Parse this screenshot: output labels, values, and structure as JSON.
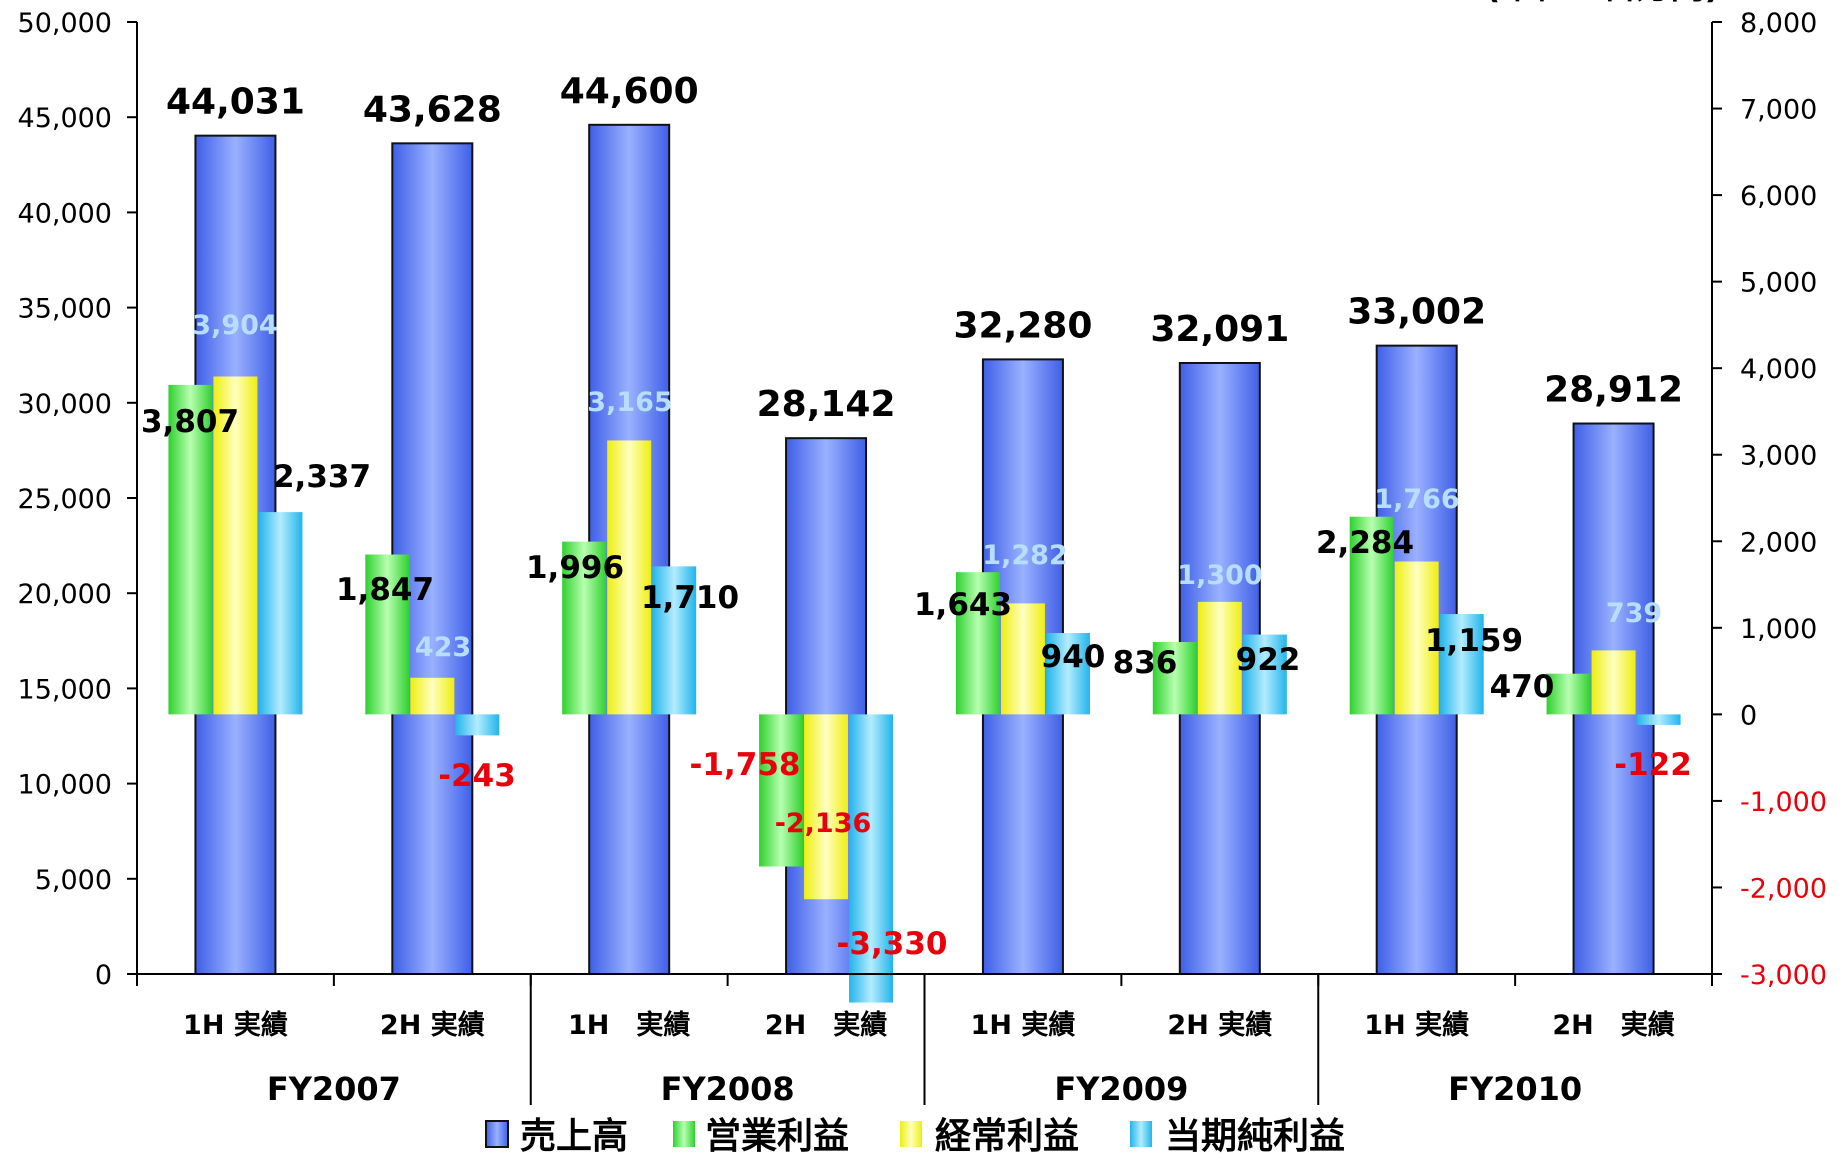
{
  "chart_data": {
    "type": "bar",
    "title": "",
    "unit_note": "(単位：百万円)",
    "left_axis": {
      "ylim": [
        0,
        50000
      ],
      "ticks": [
        "0",
        "5,000",
        "10,000",
        "15,000",
        "20,000",
        "25,000",
        "30,000",
        "35,000",
        "40,000",
        "45,000",
        "50,000"
      ]
    },
    "right_axis": {
      "ylim": [
        -3000,
        8000
      ],
      "ticks": [
        "-3,000",
        "-2,000",
        "-1,000",
        "0",
        "1,000",
        "2,000",
        "3,000",
        "4,000",
        "5,000",
        "6,000",
        "7,000",
        "8,000"
      ],
      "negative_color": "#e8000b",
      "positive_color": "#000000"
    },
    "categories": [
      "1H 実績",
      "2H 実績",
      "1H　実績",
      "2H　実績",
      "1H 実績",
      "2H 実績",
      "1H 実績",
      "2H　実績"
    ],
    "groups": [
      "FY2007",
      "FY2008",
      "FY2009",
      "FY2010"
    ],
    "series": [
      {
        "name": "売上高",
        "axis": "left",
        "color": "#6f8ff5",
        "values": [
          44031,
          43628,
          44600,
          28142,
          32280,
          32091,
          33002,
          28912
        ],
        "labels": [
          "44,031",
          "43,628",
          "44,600",
          "28,142",
          "32,280",
          "32,091",
          "33,002",
          "28,912"
        ]
      },
      {
        "name": "営業利益",
        "axis": "right",
        "color": "#5de85d",
        "values": [
          3807,
          1847,
          1996,
          -1758,
          1643,
          836,
          2284,
          470
        ],
        "labels": [
          "3,807",
          "1,847",
          "1,996",
          "-1,758",
          "1,643",
          "836",
          "2,284",
          "470"
        ]
      },
      {
        "name": "経常利益",
        "axis": "right",
        "color": "#f7f73a",
        "values": [
          3904,
          423,
          3165,
          -2136,
          1282,
          1300,
          1766,
          739
        ],
        "labels": [
          "3,904",
          "423",
          "3,165",
          "-2,136",
          "1,282",
          "1,300",
          "1,766",
          "739"
        ]
      },
      {
        "name": "当期純利益",
        "axis": "right",
        "color": "#47c9f0",
        "values": [
          2337,
          -243,
          1710,
          -3330,
          940,
          922,
          1159,
          -122
        ],
        "labels": [
          "2,337",
          "-243",
          "1,710",
          "-3,330",
          "940",
          "922",
          "1,159",
          "-122"
        ]
      }
    ],
    "legend": {
      "placement": "bottom",
      "entries": [
        "売上高",
        "営業利益",
        "経常利益",
        "当期純利益"
      ]
    }
  }
}
